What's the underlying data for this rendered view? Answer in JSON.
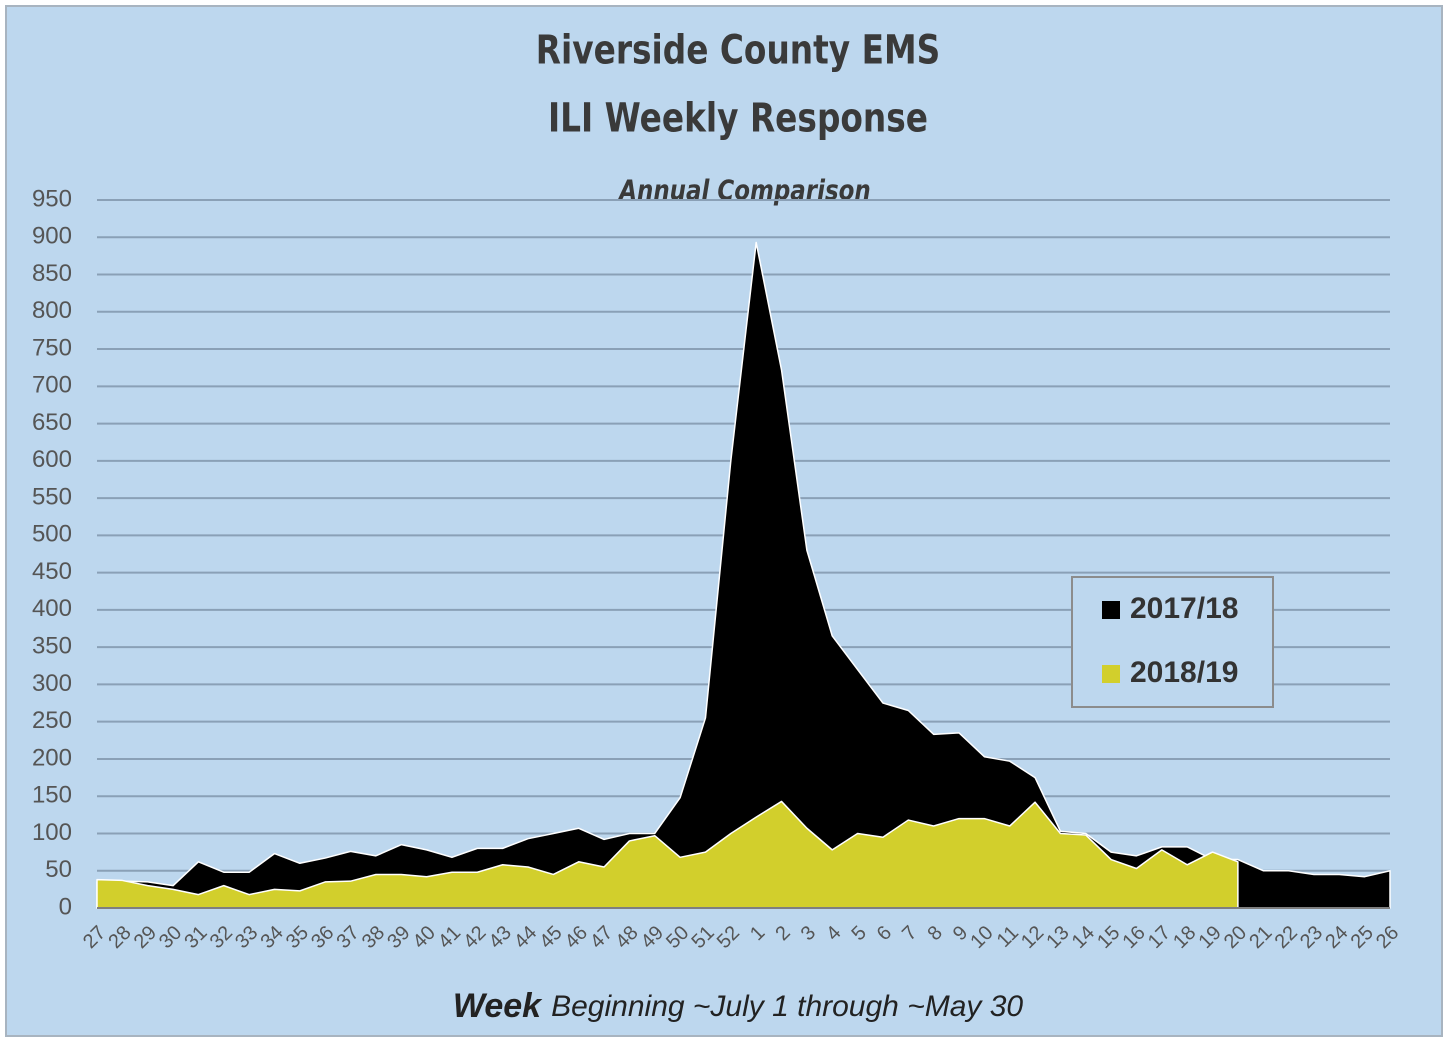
{
  "chart_data": {
    "type": "area",
    "title": "Riverside County EMS",
    "title_line2": "ILI Weekly Response",
    "subtitle": "Annual Comparison",
    "xlabel": "Week",
    "xlabel_note": "Beginning ~July 1 through ~May 30",
    "categories": [
      "27",
      "28",
      "29",
      "30",
      "31",
      "32",
      "33",
      "34",
      "35",
      "36",
      "37",
      "38",
      "39",
      "40",
      "41",
      "42",
      "43",
      "44",
      "45",
      "46",
      "47",
      "48",
      "49",
      "50",
      "51",
      "52",
      "1",
      "2",
      "3",
      "4",
      "5",
      "6",
      "7",
      "8",
      "9",
      "10",
      "11",
      "12",
      "13",
      "14",
      "15",
      "16",
      "17",
      "18",
      "19",
      "20",
      "21",
      "22",
      "23",
      "24",
      "25",
      "26"
    ],
    "series": [
      {
        "name": "2017/18",
        "color": "#000000",
        "values": [
          35,
          36,
          35,
          30,
          62,
          48,
          48,
          73,
          60,
          67,
          76,
          70,
          85,
          78,
          68,
          80,
          80,
          93,
          100,
          107,
          92,
          100,
          100,
          148,
          255,
          600,
          893,
          722,
          480,
          365,
          320,
          275,
          265,
          233,
          235,
          203,
          197,
          175,
          103,
          100,
          75,
          70,
          82,
          82,
          65,
          65,
          50,
          50,
          45,
          45,
          42,
          50
        ]
      },
      {
        "name": "2018/19",
        "color": "#d2cf2c",
        "values": [
          38,
          37,
          30,
          25,
          18,
          30,
          18,
          25,
          23,
          35,
          36,
          45,
          45,
          42,
          48,
          48,
          58,
          55,
          45,
          62,
          55,
          90,
          97,
          68,
          75,
          100,
          122,
          143,
          107,
          78,
          100,
          95,
          118,
          110,
          120,
          120,
          110,
          142,
          100,
          98,
          65,
          53,
          78,
          58,
          75,
          62,
          null,
          null,
          null,
          null,
          null,
          null
        ]
      }
    ],
    "ylim": [
      0,
      950
    ],
    "yticks": [
      0,
      50,
      100,
      150,
      200,
      250,
      300,
      350,
      400,
      450,
      500,
      550,
      600,
      650,
      700,
      750,
      800,
      850,
      900,
      950
    ],
    "grid": true,
    "legend": "right"
  }
}
